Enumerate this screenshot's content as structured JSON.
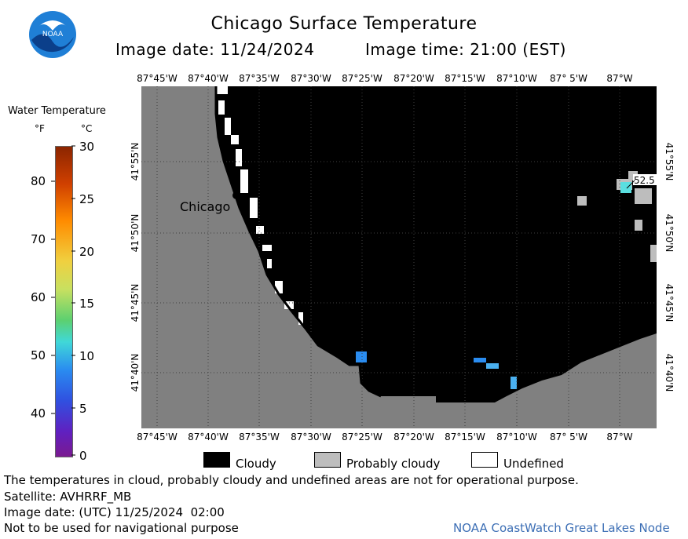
{
  "header": {
    "title": "Chicago Surface Temperature",
    "image_date": "Image date: 11/24/2024",
    "image_time": "Image time: 21:00 (EST)"
  },
  "logo": {
    "text": "NOAA"
  },
  "scale": {
    "title": "Water Temperature",
    "unit_f": "°F",
    "unit_c": "°C",
    "f_ticks": [
      "80",
      "70",
      "60",
      "50",
      "40"
    ],
    "c_ticks": [
      "30",
      "25",
      "20",
      "15",
      "10",
      "5",
      "0"
    ]
  },
  "map": {
    "lon_labels": [
      "87°45'W",
      "87°40'W",
      "87°35'W",
      "87°30'W",
      "87°25'W",
      "87°20'W",
      "87°15'W",
      "87°10'W",
      "87° 5'W",
      "87°W"
    ],
    "lat_labels": [
      "41°55'N",
      "41°50'N",
      "41°45'N",
      "41°40'N"
    ],
    "city_label": "Chicago",
    "temp_annotation": "52.5"
  },
  "legend": {
    "cloudy": "Cloudy",
    "probably_cloudy": "Probably cloudy",
    "undefined": "Undefined"
  },
  "footer": {
    "disclaimer": "The temperatures in cloud, probably cloudy and undefined areas are not for operational purpose.",
    "satellite": "Satellite: AVHRRF_MB",
    "utc_date": "Image date: (UTC) 11/25/2024  02:00",
    "nav_warning": "Not to be used for navigational purpose",
    "credit": "NOAA CoastWatch Great Lakes Node"
  },
  "colors": {
    "land": "#808080",
    "cloudy": "#000000",
    "probably_cloudy": "#bdbdbd",
    "credit": "#3d6fb5",
    "logo_blue": "#1f7fd6"
  }
}
